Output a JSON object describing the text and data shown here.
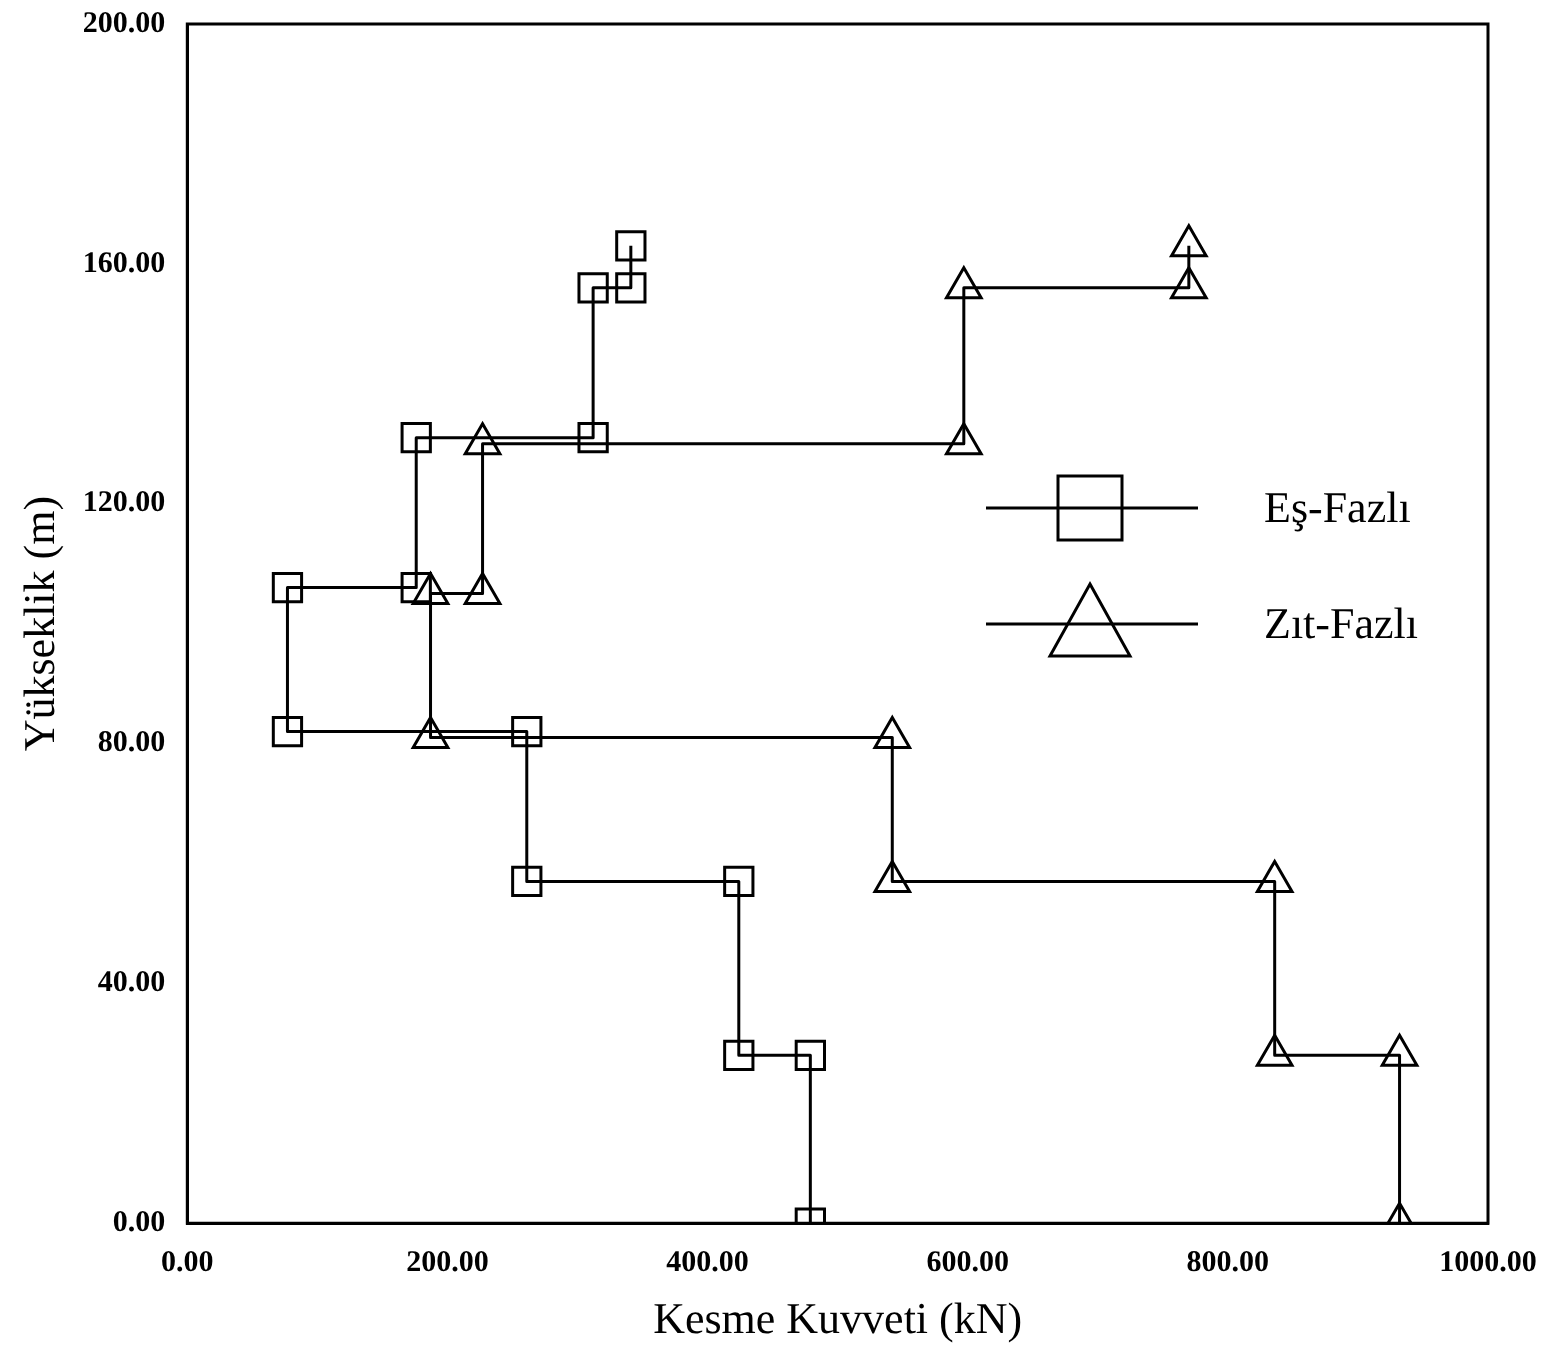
{
  "chart_data": {
    "type": "line",
    "xlabel": "Kesme Kuvveti (kN)",
    "ylabel": "Yükseklik (m)",
    "xlim": [
      0,
      1000
    ],
    "ylim": [
      0,
      200
    ],
    "xticks": [
      {
        "value": 0,
        "label": "0.00"
      },
      {
        "value": 200,
        "label": "200.00"
      },
      {
        "value": 400,
        "label": "400.00"
      },
      {
        "value": 600,
        "label": "600.00"
      },
      {
        "value": 800,
        "label": "800.00"
      },
      {
        "value": 1000,
        "label": "1000.00"
      }
    ],
    "yticks": [
      {
        "value": 0,
        "label": "0.00"
      },
      {
        "value": 40,
        "label": "40.00"
      },
      {
        "value": 80,
        "label": "80.00"
      },
      {
        "value": 120,
        "label": "120.00"
      },
      {
        "value": 160,
        "label": "160.00"
      },
      {
        "value": 200,
        "label": "200.00"
      }
    ],
    "grid": false,
    "legend": "right",
    "line_style": "solid",
    "series": [
      {
        "name": "Eş-Fazlı",
        "color": "#000000",
        "marker": "square",
        "x": [
          479,
          479,
          424,
          424,
          261,
          261,
          77,
          77,
          176,
          176,
          312,
          312,
          341,
          341
        ],
        "values": [
          0,
          28,
          28,
          57,
          57,
          82,
          82,
          106,
          106,
          131,
          131,
          156,
          156,
          163
        ]
      },
      {
        "name": "Zıt-Fazlı",
        "color": "#000000",
        "marker": "triangle",
        "x": [
          932,
          932,
          836,
          836,
          542,
          542,
          187,
          187,
          227,
          227,
          597,
          597,
          770,
          770
        ],
        "values": [
          0,
          28,
          28,
          57,
          57,
          81,
          81,
          105,
          105,
          130,
          130,
          156,
          156,
          163
        ]
      }
    ]
  }
}
